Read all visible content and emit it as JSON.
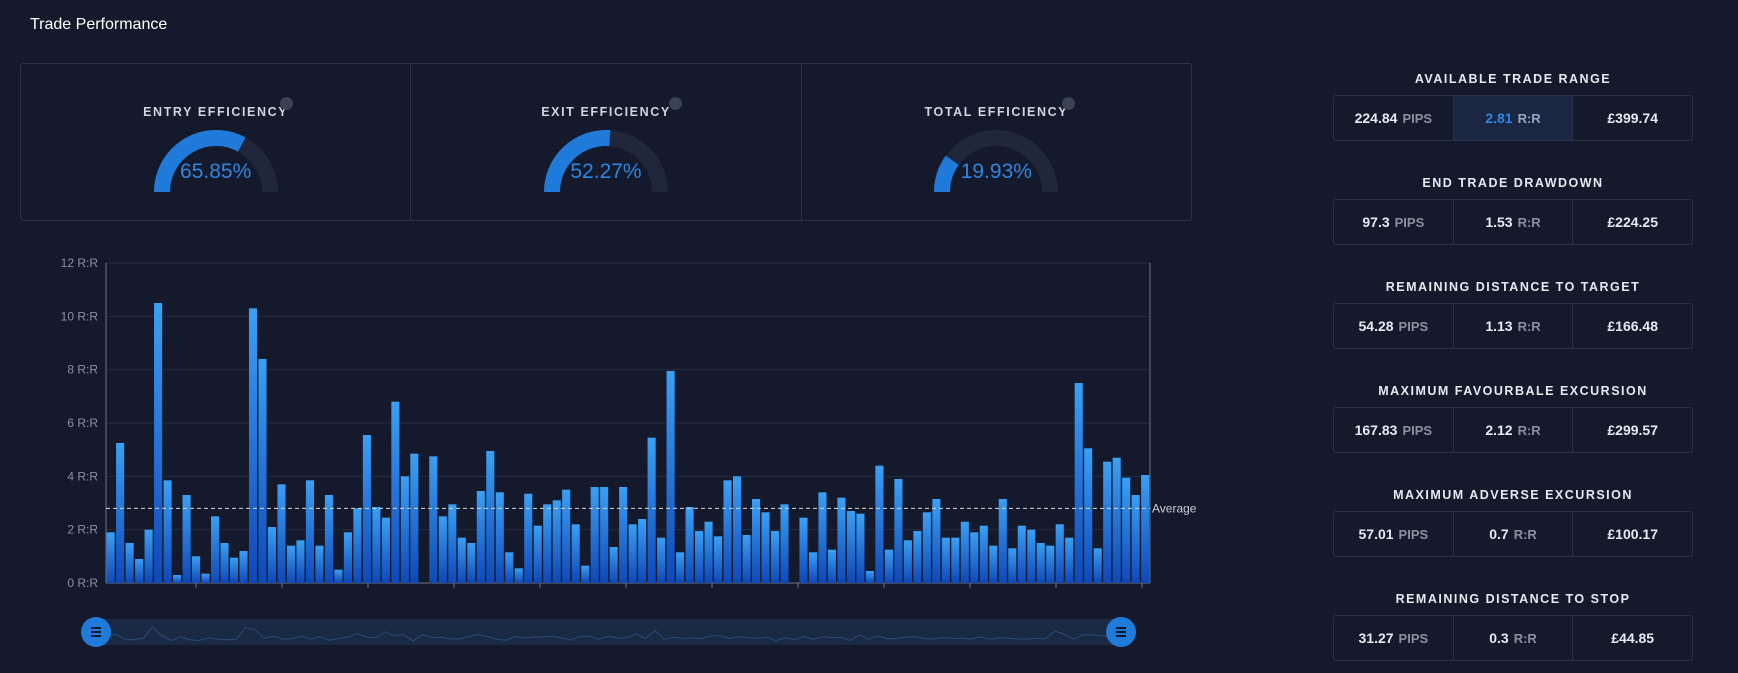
{
  "page_title": "Trade Performance",
  "efficiency": [
    {
      "title": "ENTRY EFFICIENCY",
      "value": "65.85%",
      "fraction": 0.6585
    },
    {
      "title": "EXIT EFFICIENCY",
      "value": "52.27%",
      "fraction": 0.5227
    },
    {
      "title": "TOTAL EFFICIENCY",
      "value": "19.93%",
      "fraction": 0.1993
    }
  ],
  "colors": {
    "accent": "#1f7ad9",
    "bar_top": "#3aa0f5",
    "bar_bottom": "#0f48b8",
    "gauge_track": "#20273a"
  },
  "chart_data": {
    "type": "bar",
    "y_tick_labels": [
      "0 R:R",
      "2 R:R",
      "4 R:R",
      "6 R:R",
      "8 R:R",
      "10 R:R",
      "12 R:R"
    ],
    "ylim": [
      0,
      12
    ],
    "average": 2.8,
    "average_label": "Average",
    "grid": true,
    "values": [
      1.9,
      5.25,
      1.5,
      0.9,
      2.0,
      10.5,
      3.85,
      0.3,
      3.3,
      1.0,
      0.35,
      2.5,
      1.5,
      0.95,
      1.2,
      10.3,
      8.4,
      2.1,
      3.7,
      1.4,
      1.6,
      3.85,
      1.4,
      3.3,
      0.5,
      1.9,
      2.8,
      5.55,
      2.85,
      2.45,
      6.8,
      4.0,
      4.85,
      0.0,
      4.75,
      2.5,
      2.95,
      1.7,
      1.5,
      3.45,
      4.95,
      3.4,
      1.15,
      0.55,
      3.35,
      2.15,
      2.95,
      3.1,
      3.5,
      2.2,
      0.65,
      3.6,
      3.6,
      1.35,
      3.6,
      2.2,
      2.4,
      5.45,
      1.7,
      7.95,
      1.15,
      2.85,
      1.95,
      2.3,
      1.75,
      3.85,
      4.0,
      1.8,
      3.15,
      2.65,
      1.95,
      2.95,
      0.0,
      2.45,
      1.15,
      3.4,
      1.25,
      3.2,
      2.7,
      2.6,
      0.45,
      4.4,
      1.25,
      3.9,
      1.6,
      1.95,
      2.65,
      3.15,
      1.7,
      1.7,
      2.3,
      1.9,
      2.15,
      1.4,
      3.15,
      1.3,
      2.15,
      2.0,
      1.5,
      1.4,
      2.2,
      1.7,
      7.5,
      5.05,
      1.3,
      4.55,
      4.7,
      3.95,
      3.3,
      4.05
    ]
  },
  "metrics": [
    {
      "title": "AVAILABLE TRADE RANGE",
      "pips": "224.84",
      "pips_unit": "PIPS",
      "rr": "2.81",
      "rr_unit": "R:R",
      "gbp": "£399.74",
      "rr_active": true
    },
    {
      "title": "END TRADE DRAWDOWN",
      "pips": "97.3",
      "pips_unit": "PIPS",
      "rr": "1.53",
      "rr_unit": "R:R",
      "gbp": "£224.25",
      "rr_active": false
    },
    {
      "title": "REMAINING DISTANCE TO TARGET",
      "pips": "54.28",
      "pips_unit": "PIPS",
      "rr": "1.13",
      "rr_unit": "R:R",
      "gbp": "£166.48",
      "rr_active": false
    },
    {
      "title": "MAXIMUM FAVOURBALE EXCURSION",
      "pips": "167.83",
      "pips_unit": "PIPS",
      "rr": "2.12",
      "rr_unit": "R:R",
      "gbp": "£299.57",
      "rr_active": false
    },
    {
      "title": "MAXIMUM ADVERSE EXCURSION",
      "pips": "57.01",
      "pips_unit": "PIPS",
      "rr": "0.7",
      "rr_unit": "R:R",
      "gbp": "£100.17",
      "rr_active": false
    },
    {
      "title": "REMAINING DISTANCE TO STOP",
      "pips": "31.27",
      "pips_unit": "PIPS",
      "rr": "0.3",
      "rr_unit": "R:R",
      "gbp": "£44.85",
      "rr_active": false
    }
  ]
}
